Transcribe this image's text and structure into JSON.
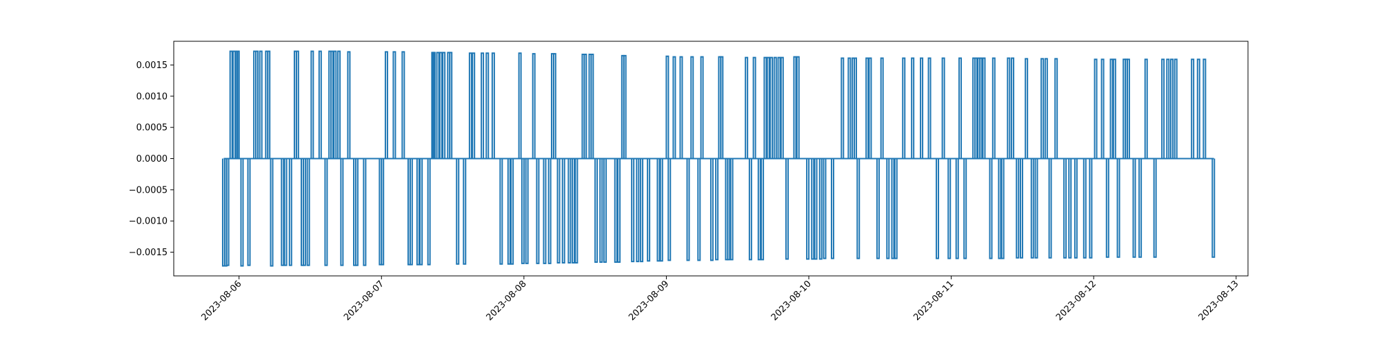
{
  "chart_data": {
    "type": "line",
    "title": "",
    "xlabel": "",
    "ylabel": "",
    "x_axis": "date",
    "xlim": [
      "2023-08-05T13:00",
      "2023-08-13T02:00"
    ],
    "ylim": [
      -0.00188,
      0.00188
    ],
    "xticks": [
      "2023-08-06",
      "2023-08-07",
      "2023-08-08",
      "2023-08-09",
      "2023-08-10",
      "2023-08-11",
      "2023-08-12",
      "2023-08-13"
    ],
    "yticks": [
      "0.0015",
      "0.0010",
      "0.0005",
      "0.0000",
      "−0.0005",
      "−0.0010",
      "−0.0015"
    ],
    "grid": false,
    "legend": "none",
    "line_color": "#1f77b4",
    "series_start": "2023-08-05T21:25",
    "series_end": "2023-08-12T20:15",
    "baseline": 0.0,
    "spikes": [
      {
        "x": "2023-08-05T21:25",
        "y": -0.00172
      },
      {
        "x": "2023-08-05T21:45",
        "y": -0.00172
      },
      {
        "x": "2023-08-05T22:05",
        "y": -0.00171
      },
      {
        "x": "2023-08-05T22:40",
        "y": 0.00172
      },
      {
        "x": "2023-08-05T23:10",
        "y": 0.00172
      },
      {
        "x": "2023-08-05T23:35",
        "y": 0.00172
      },
      {
        "x": "2023-08-05T23:50",
        "y": 0.00172
      },
      {
        "x": "2023-08-06T00:30",
        "y": -0.00172
      },
      {
        "x": "2023-08-06T01:40",
        "y": -0.00171
      },
      {
        "x": "2023-08-06T02:40",
        "y": 0.00172
      },
      {
        "x": "2023-08-06T03:00",
        "y": 0.00172
      },
      {
        "x": "2023-08-06T03:40",
        "y": 0.00172
      },
      {
        "x": "2023-08-06T04:40",
        "y": 0.00172
      },
      {
        "x": "2023-08-06T05:00",
        "y": 0.00172
      },
      {
        "x": "2023-08-06T05:30",
        "y": -0.00172
      },
      {
        "x": "2023-08-06T07:20",
        "y": -0.00171
      },
      {
        "x": "2023-08-06T07:50",
        "y": -0.00171
      },
      {
        "x": "2023-08-06T08:40",
        "y": -0.00171
      },
      {
        "x": "2023-08-06T09:30",
        "y": 0.00172
      },
      {
        "x": "2023-08-06T09:50",
        "y": 0.00172
      },
      {
        "x": "2023-08-06T10:40",
        "y": -0.00171
      },
      {
        "x": "2023-08-06T11:00",
        "y": -0.00171
      },
      {
        "x": "2023-08-06T11:40",
        "y": -0.00171
      },
      {
        "x": "2023-08-06T12:20",
        "y": 0.00172
      },
      {
        "x": "2023-08-06T13:40",
        "y": 0.00172
      },
      {
        "x": "2023-08-06T14:40",
        "y": -0.00171
      },
      {
        "x": "2023-08-06T15:20",
        "y": 0.00172
      },
      {
        "x": "2023-08-06T15:40",
        "y": 0.00172
      },
      {
        "x": "2023-08-06T16:10",
        "y": 0.00172
      },
      {
        "x": "2023-08-06T16:50",
        "y": 0.00172
      },
      {
        "x": "2023-08-06T17:20",
        "y": -0.00171
      },
      {
        "x": "2023-08-06T18:30",
        "y": 0.00171
      },
      {
        "x": "2023-08-06T19:30",
        "y": -0.00171
      },
      {
        "x": "2023-08-06T19:50",
        "y": -0.00171
      },
      {
        "x": "2023-08-06T21:10",
        "y": -0.00171
      },
      {
        "x": "2023-08-06T23:50",
        "y": -0.0017
      },
      {
        "x": "2023-08-07T00:10",
        "y": -0.0017
      },
      {
        "x": "2023-08-07T00:50",
        "y": 0.00171
      },
      {
        "x": "2023-08-07T02:10",
        "y": 0.00171
      },
      {
        "x": "2023-08-07T03:40",
        "y": 0.00171
      },
      {
        "x": "2023-08-07T04:40",
        "y": -0.0017
      },
      {
        "x": "2023-08-07T05:00",
        "y": -0.0017
      },
      {
        "x": "2023-08-07T06:10",
        "y": -0.0017
      },
      {
        "x": "2023-08-07T06:40",
        "y": -0.0017
      },
      {
        "x": "2023-08-07T08:00",
        "y": -0.0017
      },
      {
        "x": "2023-08-07T08:40",
        "y": 0.0017
      },
      {
        "x": "2023-08-07T08:50",
        "y": 0.0017
      },
      {
        "x": "2023-08-07T09:30",
        "y": 0.0017
      },
      {
        "x": "2023-08-07T10:00",
        "y": 0.0017
      },
      {
        "x": "2023-08-07T10:30",
        "y": 0.0017
      },
      {
        "x": "2023-08-07T11:20",
        "y": 0.0017
      },
      {
        "x": "2023-08-07T11:40",
        "y": 0.0017
      },
      {
        "x": "2023-08-07T12:50",
        "y": -0.00169
      },
      {
        "x": "2023-08-07T14:00",
        "y": -0.00169
      },
      {
        "x": "2023-08-07T15:00",
        "y": 0.00169
      },
      {
        "x": "2023-08-07T15:30",
        "y": 0.00169
      },
      {
        "x": "2023-08-07T17:00",
        "y": 0.00169
      },
      {
        "x": "2023-08-07T17:50",
        "y": 0.00169
      },
      {
        "x": "2023-08-07T18:50",
        "y": 0.00169
      },
      {
        "x": "2023-08-07T20:10",
        "y": -0.00169
      },
      {
        "x": "2023-08-07T21:30",
        "y": -0.00169
      },
      {
        "x": "2023-08-07T22:00",
        "y": -0.00169
      },
      {
        "x": "2023-08-07T23:20",
        "y": 0.00169
      },
      {
        "x": "2023-08-07T23:50",
        "y": -0.00168
      },
      {
        "x": "2023-08-08T00:30",
        "y": -0.00168
      },
      {
        "x": "2023-08-08T01:40",
        "y": 0.00168
      },
      {
        "x": "2023-08-08T02:20",
        "y": -0.00168
      },
      {
        "x": "2023-08-08T03:30",
        "y": -0.00168
      },
      {
        "x": "2023-08-08T04:20",
        "y": -0.00168
      },
      {
        "x": "2023-08-08T04:50",
        "y": 0.00168
      },
      {
        "x": "2023-08-08T05:10",
        "y": 0.00168
      },
      {
        "x": "2023-08-08T05:50",
        "y": -0.00167
      },
      {
        "x": "2023-08-08T06:40",
        "y": -0.00167
      },
      {
        "x": "2023-08-08T07:40",
        "y": -0.00167
      },
      {
        "x": "2023-08-08T08:20",
        "y": -0.00167
      },
      {
        "x": "2023-08-08T08:50",
        "y": -0.00167
      },
      {
        "x": "2023-08-08T10:00",
        "y": 0.00167
      },
      {
        "x": "2023-08-08T10:20",
        "y": 0.00167
      },
      {
        "x": "2023-08-08T11:10",
        "y": 0.00167
      },
      {
        "x": "2023-08-08T11:30",
        "y": 0.00167
      },
      {
        "x": "2023-08-08T12:10",
        "y": -0.00166
      },
      {
        "x": "2023-08-08T13:00",
        "y": -0.00166
      },
      {
        "x": "2023-08-08T13:40",
        "y": -0.00166
      },
      {
        "x": "2023-08-08T15:30",
        "y": -0.00166
      },
      {
        "x": "2023-08-08T16:00",
        "y": -0.00166
      },
      {
        "x": "2023-08-08T16:40",
        "y": 0.00165
      },
      {
        "x": "2023-08-08T17:00",
        "y": 0.00165
      },
      {
        "x": "2023-08-08T18:20",
        "y": -0.00165
      },
      {
        "x": "2023-08-08T19:10",
        "y": -0.00165
      },
      {
        "x": "2023-08-08T19:50",
        "y": -0.00165
      },
      {
        "x": "2023-08-08T21:00",
        "y": -0.00164
      },
      {
        "x": "2023-08-08T22:40",
        "y": -0.00164
      },
      {
        "x": "2023-08-08T23:10",
        "y": -0.00164
      },
      {
        "x": "2023-08-09T00:10",
        "y": 0.00164
      },
      {
        "x": "2023-08-09T00:30",
        "y": -0.00163
      },
      {
        "x": "2023-08-09T01:20",
        "y": 0.00163
      },
      {
        "x": "2023-08-09T02:30",
        "y": 0.00163
      },
      {
        "x": "2023-08-09T03:40",
        "y": -0.00163
      },
      {
        "x": "2023-08-09T04:20",
        "y": 0.00163
      },
      {
        "x": "2023-08-09T05:30",
        "y": -0.00163
      },
      {
        "x": "2023-08-09T06:00",
        "y": 0.00163
      },
      {
        "x": "2023-08-09T07:40",
        "y": -0.00163
      },
      {
        "x": "2023-08-09T08:30",
        "y": -0.00162
      },
      {
        "x": "2023-08-09T09:00",
        "y": 0.00163
      },
      {
        "x": "2023-08-09T09:20",
        "y": 0.00163
      },
      {
        "x": "2023-08-09T10:10",
        "y": -0.00162
      },
      {
        "x": "2023-08-09T10:30",
        "y": -0.00162
      },
      {
        "x": "2023-08-09T11:00",
        "y": -0.00162
      },
      {
        "x": "2023-08-09T13:30",
        "y": 0.00162
      },
      {
        "x": "2023-08-09T14:10",
        "y": -0.00162
      },
      {
        "x": "2023-08-09T14:50",
        "y": 0.00162
      },
      {
        "x": "2023-08-09T15:40",
        "y": -0.00162
      },
      {
        "x": "2023-08-09T16:10",
        "y": -0.00162
      },
      {
        "x": "2023-08-09T16:40",
        "y": 0.00162
      },
      {
        "x": "2023-08-09T17:10",
        "y": 0.00162
      },
      {
        "x": "2023-08-09T17:40",
        "y": 0.00162
      },
      {
        "x": "2023-08-09T18:20",
        "y": 0.00162
      },
      {
        "x": "2023-08-09T19:00",
        "y": 0.00162
      },
      {
        "x": "2023-08-09T19:30",
        "y": 0.00162
      },
      {
        "x": "2023-08-09T20:20",
        "y": -0.00161
      },
      {
        "x": "2023-08-09T21:40",
        "y": 0.00163
      },
      {
        "x": "2023-08-09T22:10",
        "y": 0.00163
      },
      {
        "x": "2023-08-09T23:50",
        "y": -0.00161
      },
      {
        "x": "2023-08-10T00:40",
        "y": -0.00161
      },
      {
        "x": "2023-08-10T01:10",
        "y": -0.00161
      },
      {
        "x": "2023-08-10T02:00",
        "y": -0.00161
      },
      {
        "x": "2023-08-10T02:40",
        "y": -0.0016
      },
      {
        "x": "2023-08-10T04:00",
        "y": -0.0016
      },
      {
        "x": "2023-08-10T05:40",
        "y": 0.00161
      },
      {
        "x": "2023-08-10T06:50",
        "y": 0.00161
      },
      {
        "x": "2023-08-10T07:30",
        "y": 0.00161
      },
      {
        "x": "2023-08-10T07:50",
        "y": 0.00161
      },
      {
        "x": "2023-08-10T08:20",
        "y": -0.0016
      },
      {
        "x": "2023-08-10T09:50",
        "y": 0.00161
      },
      {
        "x": "2023-08-10T10:20",
        "y": 0.00161
      },
      {
        "x": "2023-08-10T11:40",
        "y": -0.0016
      },
      {
        "x": "2023-08-10T12:20",
        "y": 0.00161
      },
      {
        "x": "2023-08-10T13:20",
        "y": -0.0016
      },
      {
        "x": "2023-08-10T14:10",
        "y": -0.0016
      },
      {
        "x": "2023-08-10T14:40",
        "y": -0.0016
      },
      {
        "x": "2023-08-10T16:00",
        "y": 0.00161
      },
      {
        "x": "2023-08-10T17:30",
        "y": 0.00161
      },
      {
        "x": "2023-08-10T19:00",
        "y": 0.00161
      },
      {
        "x": "2023-08-10T20:20",
        "y": 0.00161
      },
      {
        "x": "2023-08-10T21:40",
        "y": -0.0016
      },
      {
        "x": "2023-08-10T22:40",
        "y": 0.00161
      },
      {
        "x": "2023-08-10T23:40",
        "y": -0.0016
      },
      {
        "x": "2023-08-11T01:00",
        "y": -0.0016
      },
      {
        "x": "2023-08-11T01:30",
        "y": 0.00161
      },
      {
        "x": "2023-08-11T02:20",
        "y": -0.0016
      },
      {
        "x": "2023-08-11T03:50",
        "y": 0.00161
      },
      {
        "x": "2023-08-11T04:10",
        "y": 0.00161
      },
      {
        "x": "2023-08-11T04:40",
        "y": 0.00161
      },
      {
        "x": "2023-08-11T05:00",
        "y": 0.00161
      },
      {
        "x": "2023-08-11T05:30",
        "y": 0.00161
      },
      {
        "x": "2023-08-11T06:40",
        "y": -0.0016
      },
      {
        "x": "2023-08-11T07:10",
        "y": 0.00161
      },
      {
        "x": "2023-08-11T08:10",
        "y": -0.0016
      },
      {
        "x": "2023-08-11T08:40",
        "y": -0.0016
      },
      {
        "x": "2023-08-11T09:40",
        "y": 0.00161
      },
      {
        "x": "2023-08-11T10:20",
        "y": 0.00161
      },
      {
        "x": "2023-08-11T11:10",
        "y": -0.00159
      },
      {
        "x": "2023-08-11T11:50",
        "y": -0.00159
      },
      {
        "x": "2023-08-11T12:40",
        "y": 0.0016
      },
      {
        "x": "2023-08-11T13:40",
        "y": -0.00159
      },
      {
        "x": "2023-08-11T14:20",
        "y": -0.00159
      },
      {
        "x": "2023-08-11T15:20",
        "y": 0.0016
      },
      {
        "x": "2023-08-11T16:00",
        "y": 0.0016
      },
      {
        "x": "2023-08-11T16:40",
        "y": -0.00159
      },
      {
        "x": "2023-08-11T17:40",
        "y": 0.0016
      },
      {
        "x": "2023-08-11T19:10",
        "y": -0.00159
      },
      {
        "x": "2023-08-11T20:00",
        "y": -0.00159
      },
      {
        "x": "2023-08-11T21:00",
        "y": -0.00159
      },
      {
        "x": "2023-08-11T22:30",
        "y": -0.00159
      },
      {
        "x": "2023-08-11T23:30",
        "y": -0.00159
      },
      {
        "x": "2023-08-12T00:20",
        "y": 0.00159
      },
      {
        "x": "2023-08-12T01:30",
        "y": 0.00159
      },
      {
        "x": "2023-08-12T02:20",
        "y": -0.00158
      },
      {
        "x": "2023-08-12T03:00",
        "y": 0.00159
      },
      {
        "x": "2023-08-12T03:30",
        "y": 0.00159
      },
      {
        "x": "2023-08-12T04:10",
        "y": -0.00158
      },
      {
        "x": "2023-08-12T05:10",
        "y": 0.00159
      },
      {
        "x": "2023-08-12T05:30",
        "y": 0.00159
      },
      {
        "x": "2023-08-12T05:50",
        "y": 0.00159
      },
      {
        "x": "2023-08-12T06:50",
        "y": -0.00158
      },
      {
        "x": "2023-08-12T07:50",
        "y": -0.00158
      },
      {
        "x": "2023-08-12T08:50",
        "y": 0.00159
      },
      {
        "x": "2023-08-12T10:20",
        "y": -0.00158
      },
      {
        "x": "2023-08-12T11:40",
        "y": 0.00159
      },
      {
        "x": "2023-08-12T12:30",
        "y": 0.00159
      },
      {
        "x": "2023-08-12T13:10",
        "y": 0.00159
      },
      {
        "x": "2023-08-12T13:50",
        "y": 0.00159
      },
      {
        "x": "2023-08-12T16:40",
        "y": 0.00159
      },
      {
        "x": "2023-08-12T17:40",
        "y": 0.00159
      },
      {
        "x": "2023-08-12T18:40",
        "y": 0.00159
      },
      {
        "x": "2023-08-12T20:10",
        "y": -0.00158
      }
    ]
  }
}
